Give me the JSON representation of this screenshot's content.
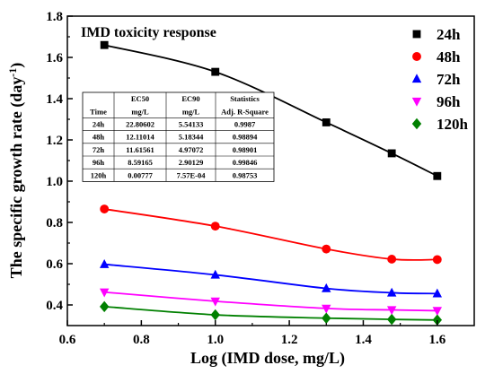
{
  "chart_data": {
    "type": "line",
    "title": "IMD toxicity response",
    "xlabel": "Log (IMD dose, mg/L)",
    "ylabel": "The specific growth rate (day",
    "ylabel_sup": "-1",
    "ylabel_close": ")",
    "xlim": [
      0.6,
      1.7
    ],
    "ylim": [
      0.3,
      1.8
    ],
    "xticks": [
      "0.6",
      "0.8",
      "1.0",
      "1.2",
      "1.4",
      "1.6"
    ],
    "yticks": [
      "0.4",
      "0.6",
      "0.8",
      "1.0",
      "1.2",
      "1.4",
      "1.6",
      "1.8"
    ],
    "grid": false,
    "legend_position": "top-right",
    "x": [
      0.7,
      1.0,
      1.3,
      1.477,
      1.6
    ],
    "series": [
      {
        "name": "24h",
        "color": "#000000",
        "marker": "square",
        "values": [
          1.66,
          1.53,
          1.285,
          1.135,
          1.025
        ]
      },
      {
        "name": "48h",
        "color": "#ff0000",
        "marker": "circle",
        "values": [
          0.865,
          0.782,
          0.671,
          0.622,
          0.62
        ]
      },
      {
        "name": "72h",
        "color": "#0000ff",
        "marker": "triangle-up",
        "values": [
          0.597,
          0.546,
          0.48,
          0.459,
          0.455
        ]
      },
      {
        "name": "96h",
        "color": "#ff00ff",
        "marker": "triangle-down",
        "values": [
          0.462,
          0.418,
          0.383,
          0.376,
          0.372
        ]
      },
      {
        "name": "120h",
        "color": "#008000",
        "marker": "diamond",
        "values": [
          0.392,
          0.352,
          0.336,
          0.33,
          0.327
        ]
      }
    ],
    "table": {
      "header_row1": [
        "",
        "EC50",
        "EC90",
        "Statistics"
      ],
      "header_row2": [
        "Time",
        "mg/L",
        "mg/L",
        "Adj. R-Square"
      ],
      "rows": [
        [
          "24h",
          "22.80602",
          "5.54133",
          "0.9987"
        ],
        [
          "48h",
          "12.11014",
          "5.18344",
          "0.98894"
        ],
        [
          "72h",
          "11.61561",
          "4.97072",
          "0.98901"
        ],
        [
          "96h",
          "8.59165",
          "2.90129",
          "0.99846"
        ],
        [
          "120h",
          "0.00777",
          "7.57E-04",
          "0.98753"
        ]
      ]
    }
  }
}
